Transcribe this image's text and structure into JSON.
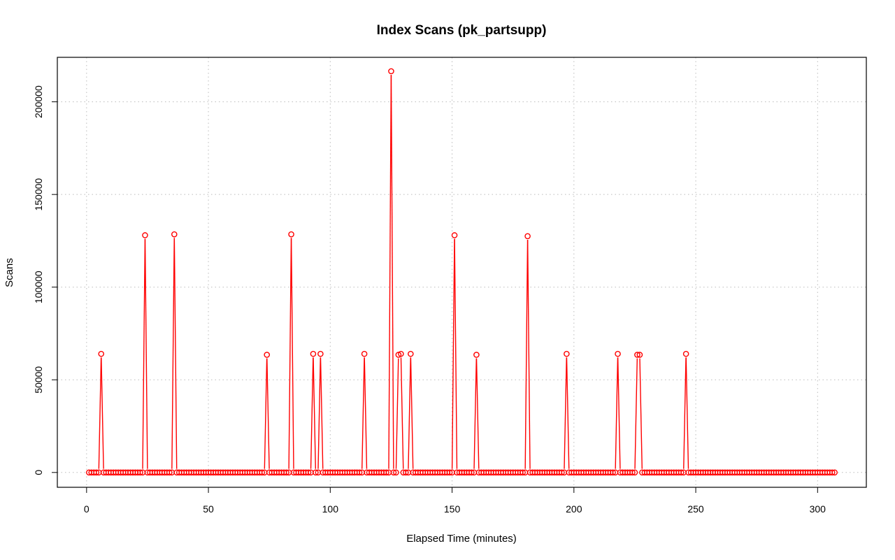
{
  "chart_data": {
    "type": "line",
    "title": "Index Scans (pk_partsupp)",
    "xlabel": "Elapsed Time (minutes)",
    "ylabel": "Scans",
    "xlim": [
      -12,
      320
    ],
    "ylim": [
      -8000,
      224000
    ],
    "x_ticks": [
      0,
      50,
      100,
      150,
      200,
      250,
      300
    ],
    "y_ticks": [
      0,
      50000,
      100000,
      150000,
      200000
    ],
    "grid": true,
    "series_color": "#ff0000",
    "marker": "open-circle",
    "x_range": [
      1,
      307
    ],
    "baseline_value": 0,
    "peaks": [
      {
        "x": 6,
        "y": 64000
      },
      {
        "x": 24,
        "y": 128000
      },
      {
        "x": 36,
        "y": 128500
      },
      {
        "x": 74,
        "y": 63500
      },
      {
        "x": 84,
        "y": 128500
      },
      {
        "x": 93,
        "y": 64000
      },
      {
        "x": 96,
        "y": 64000
      },
      {
        "x": 114,
        "y": 64000
      },
      {
        "x": 125,
        "y": 216500
      },
      {
        "x": 128,
        "y": 63500
      },
      {
        "x": 129,
        "y": 64000
      },
      {
        "x": 133,
        "y": 64000
      },
      {
        "x": 151,
        "y": 128000
      },
      {
        "x": 160,
        "y": 63500
      },
      {
        "x": 181,
        "y": 127500
      },
      {
        "x": 197,
        "y": 64000
      },
      {
        "x": 218,
        "y": 64000
      },
      {
        "x": 226,
        "y": 63500
      },
      {
        "x": 227,
        "y": 63500
      },
      {
        "x": 246,
        "y": 64000
      }
    ]
  }
}
